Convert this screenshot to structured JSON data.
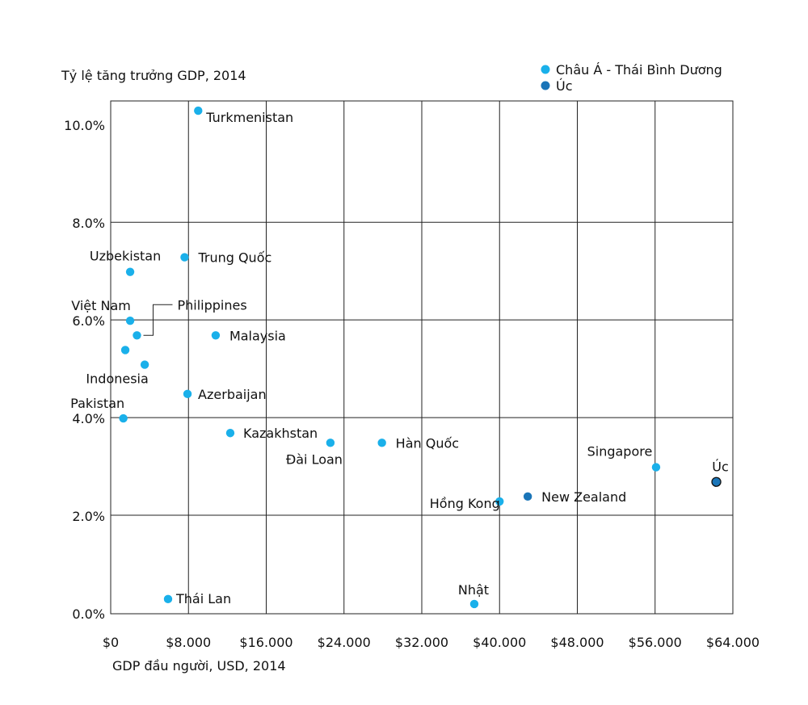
{
  "chart_data": {
    "type": "scatter",
    "ylabel": "Tỷ lệ tăng trưởng GDP, 2014",
    "xlabel": "GDP đầu người, USD, 2014",
    "xlim": [
      0,
      64000
    ],
    "ylim": [
      0,
      10
    ],
    "grid": true,
    "legend_position": "top-right",
    "x_ticks": [
      "$0",
      "$8.000",
      "$16.000",
      "$24.000",
      "$32.000",
      "$40.000",
      "$48.000",
      "$56.000",
      "$64.000"
    ],
    "y_ticks": [
      "0.0%",
      "2.0%",
      "4.0%",
      "6.0%",
      "8.0%",
      "10.0%"
    ],
    "series": [
      {
        "name": "Châu Á - Thái Bình Dương",
        "color": "#1ab0ea",
        "points": [
          {
            "label": "Turkmenistan",
            "x": 9000,
            "y": 10.3
          },
          {
            "label": "Trung Quốc",
            "x": 7600,
            "y": 7.3
          },
          {
            "label": "Uzbekistan",
            "x": 2000,
            "y": 7.0
          },
          {
            "label": "Việt Nam",
            "x": 2000,
            "y": 6.0
          },
          {
            "label": "Philippines",
            "x": 2700,
            "y": 5.7
          },
          {
            "label": "",
            "x": 1500,
            "y": 5.4
          },
          {
            "label": "Indonesia",
            "x": 3500,
            "y": 5.1
          },
          {
            "label": "Malaysia",
            "x": 10800,
            "y": 5.7
          },
          {
            "label": "Azerbaijan",
            "x": 7900,
            "y": 4.5
          },
          {
            "label": "Pakistan",
            "x": 1300,
            "y": 4.0
          },
          {
            "label": "Kazakhstan",
            "x": 12300,
            "y": 3.7
          },
          {
            "label": "Đài Loan",
            "x": 22600,
            "y": 3.5
          },
          {
            "label": "Hàn Quốc",
            "x": 27900,
            "y": 3.5
          },
          {
            "label": "Singapore",
            "x": 56100,
            "y": 3.0
          },
          {
            "label": "Hồng Kong",
            "x": 40000,
            "y": 2.3
          },
          {
            "label": "Thái Lan",
            "x": 5900,
            "y": 0.3
          },
          {
            "label": "Nhật",
            "x": 37400,
            "y": 0.2
          }
        ]
      },
      {
        "name": "Úc",
        "color": "#1a75b8",
        "points": [
          {
            "label": "New Zealand",
            "x": 42900,
            "y": 2.4
          },
          {
            "label": "Úc",
            "x": 62300,
            "y": 2.7
          }
        ]
      }
    ]
  }
}
